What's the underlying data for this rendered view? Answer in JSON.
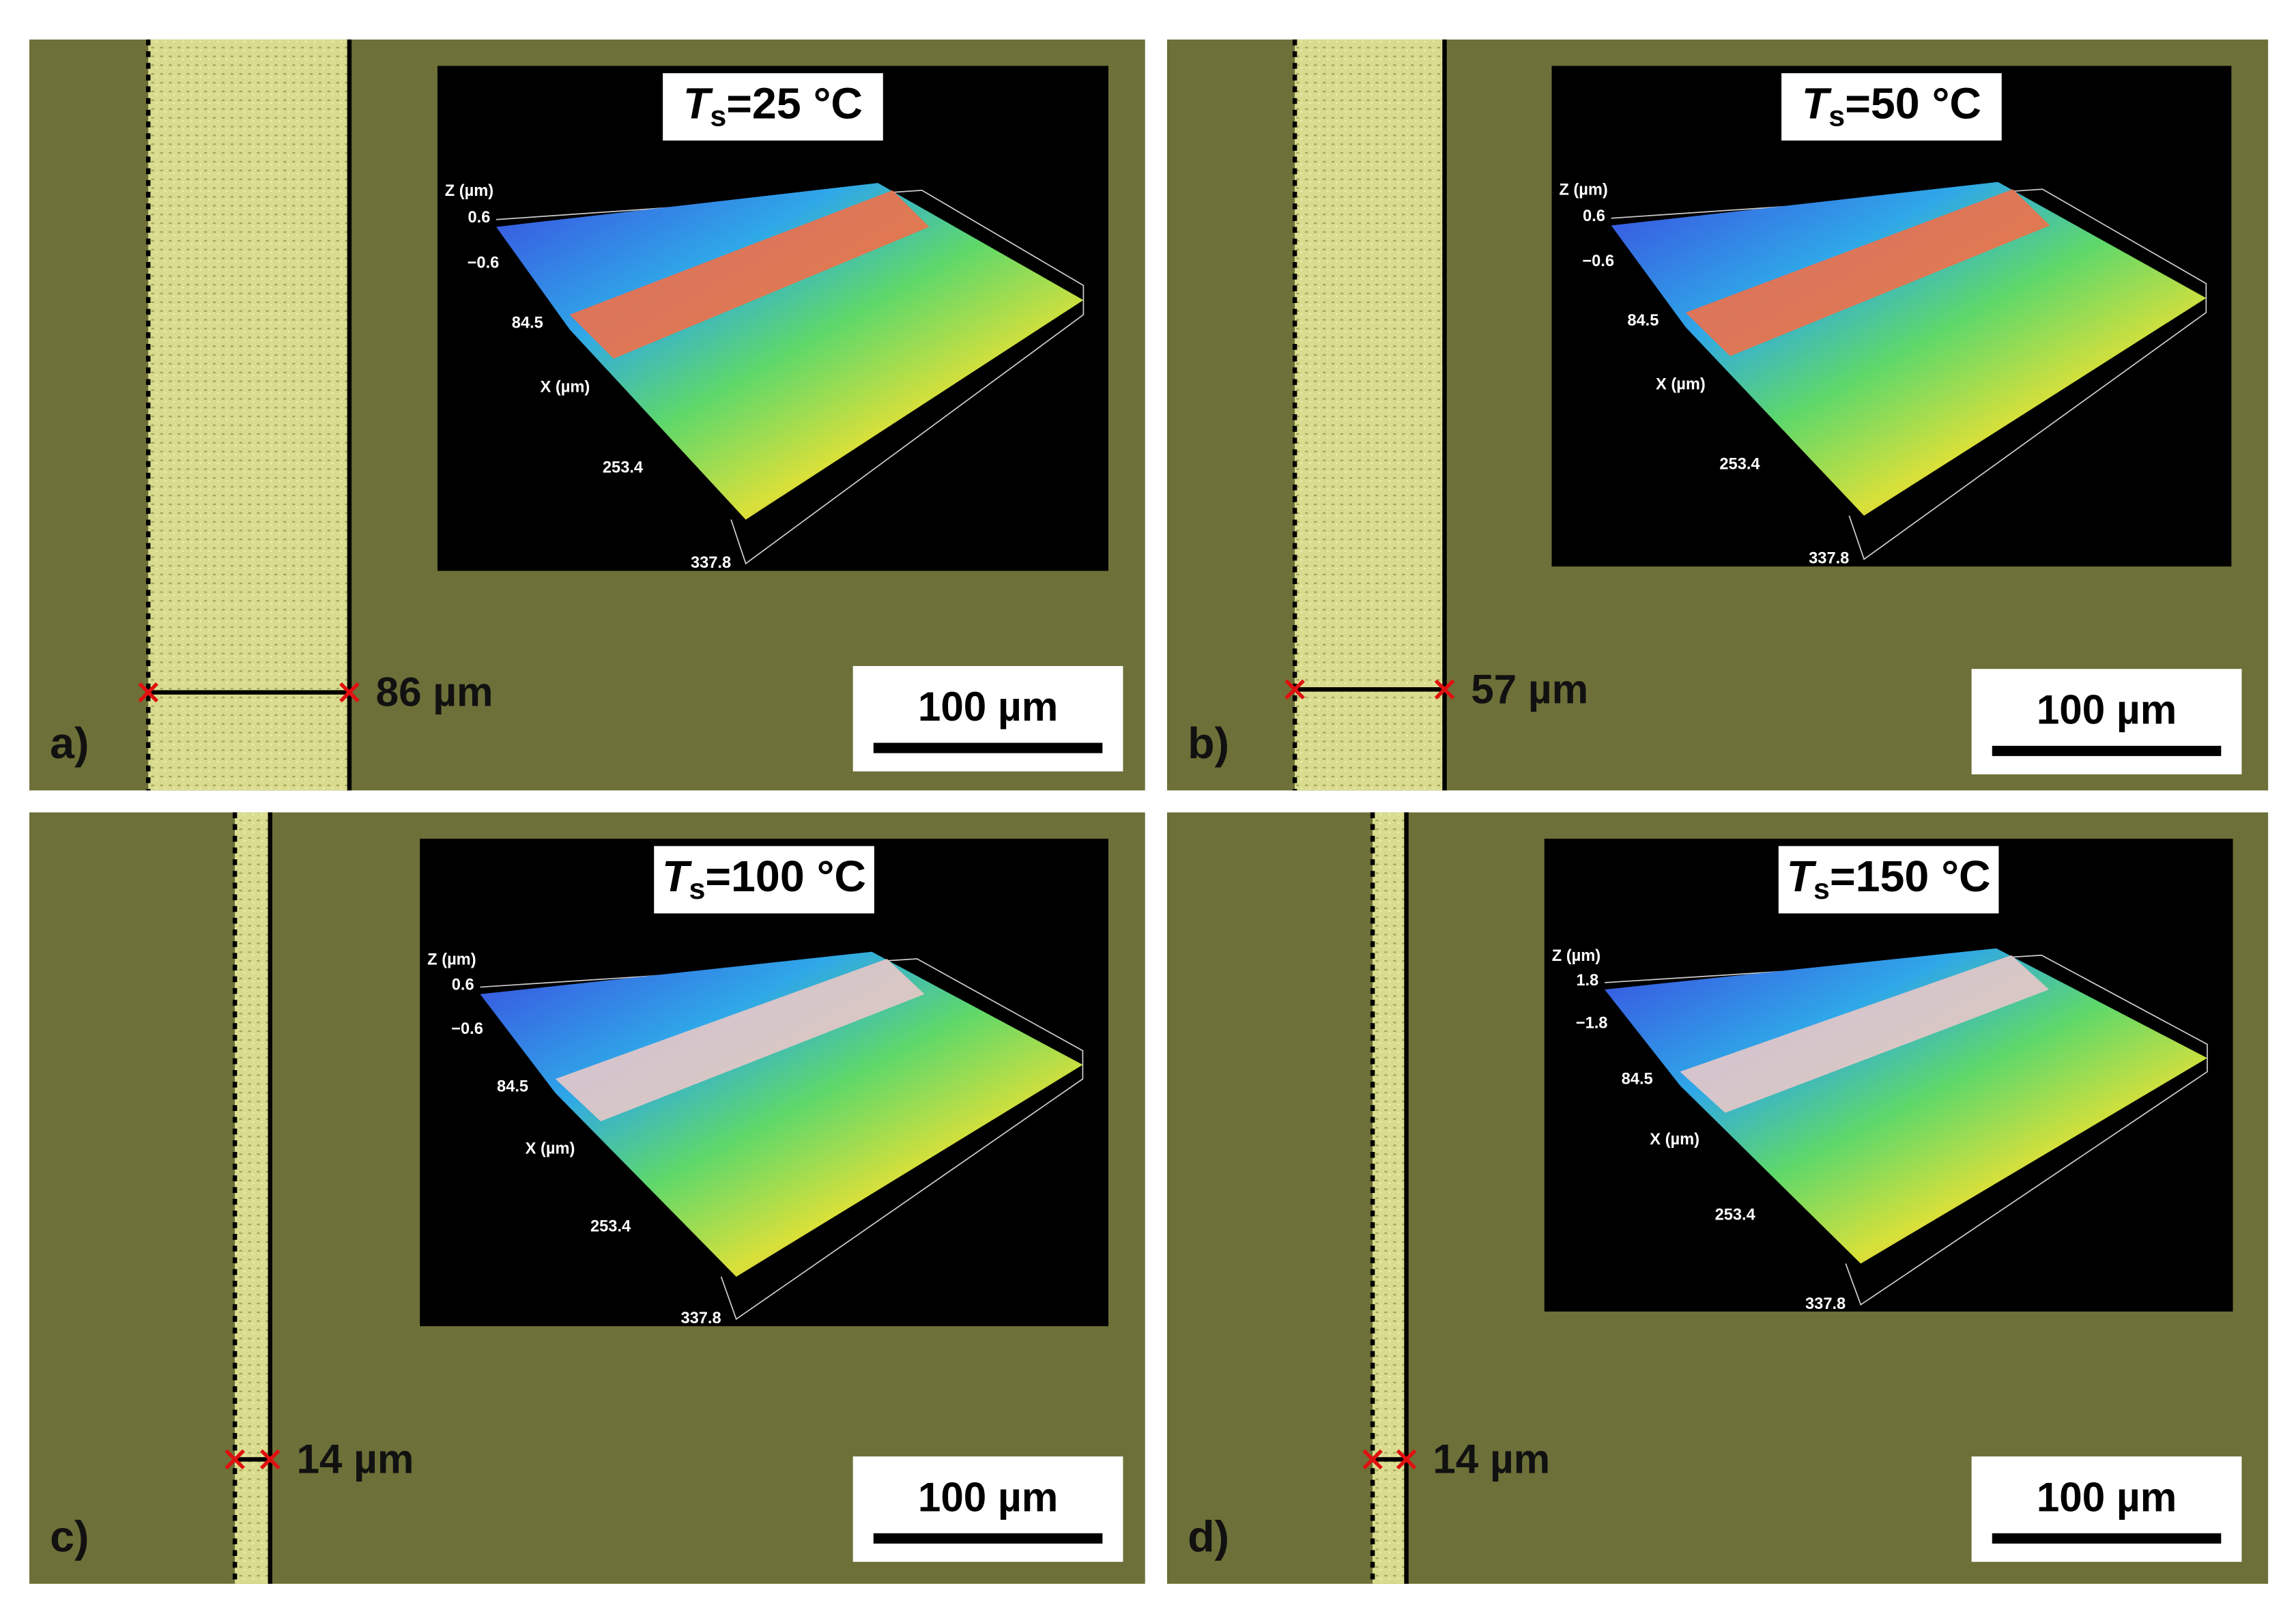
{
  "panels": [
    {
      "label": "a)",
      "title": {
        "symbol": "T",
        "subscript": "s",
        "text": "=25 °C"
      },
      "width_label": "86 µm",
      "scale_bar": "100 µm",
      "inset": {
        "z_axis": "Z (µm)",
        "z_ticks": [
          "0.6",
          "−0.6"
        ],
        "x_axis": "X (µm)",
        "x_ticks": [
          "84.5",
          "253.4",
          "337.8"
        ]
      }
    },
    {
      "label": "b)",
      "title": {
        "symbol": "T",
        "subscript": "s",
        "text": "=50 °C"
      },
      "width_label": "57 µm",
      "scale_bar": "100 µm",
      "inset": {
        "z_axis": "Z (µm)",
        "z_ticks": [
          "0.6",
          "−0.6"
        ],
        "x_axis": "X (µm)",
        "x_ticks": [
          "84.5",
          "253.4",
          "337.8"
        ]
      }
    },
    {
      "label": "c)",
      "title": {
        "symbol": "T",
        "subscript": "s",
        "text": "=100 °C"
      },
      "width_label": "14 µm",
      "scale_bar": "100 µm",
      "inset": {
        "z_axis": "Z (µm)",
        "z_ticks": [
          "0.6",
          "−0.6"
        ],
        "x_axis": "X (µm)",
        "x_ticks": [
          "84.5",
          "253.4",
          "337.8"
        ]
      }
    },
    {
      "label": "d)",
      "title": {
        "symbol": "T",
        "subscript": "s",
        "text": "=150 °C"
      },
      "width_label": "14 µm",
      "scale_bar": "100 µm",
      "inset": {
        "z_axis": "Z (µm)",
        "z_ticks": [
          "1.8",
          "−1.8"
        ],
        "x_axis": "X (µm)",
        "x_ticks": [
          "84.5",
          "253.4",
          "337.8"
        ]
      }
    }
  ]
}
